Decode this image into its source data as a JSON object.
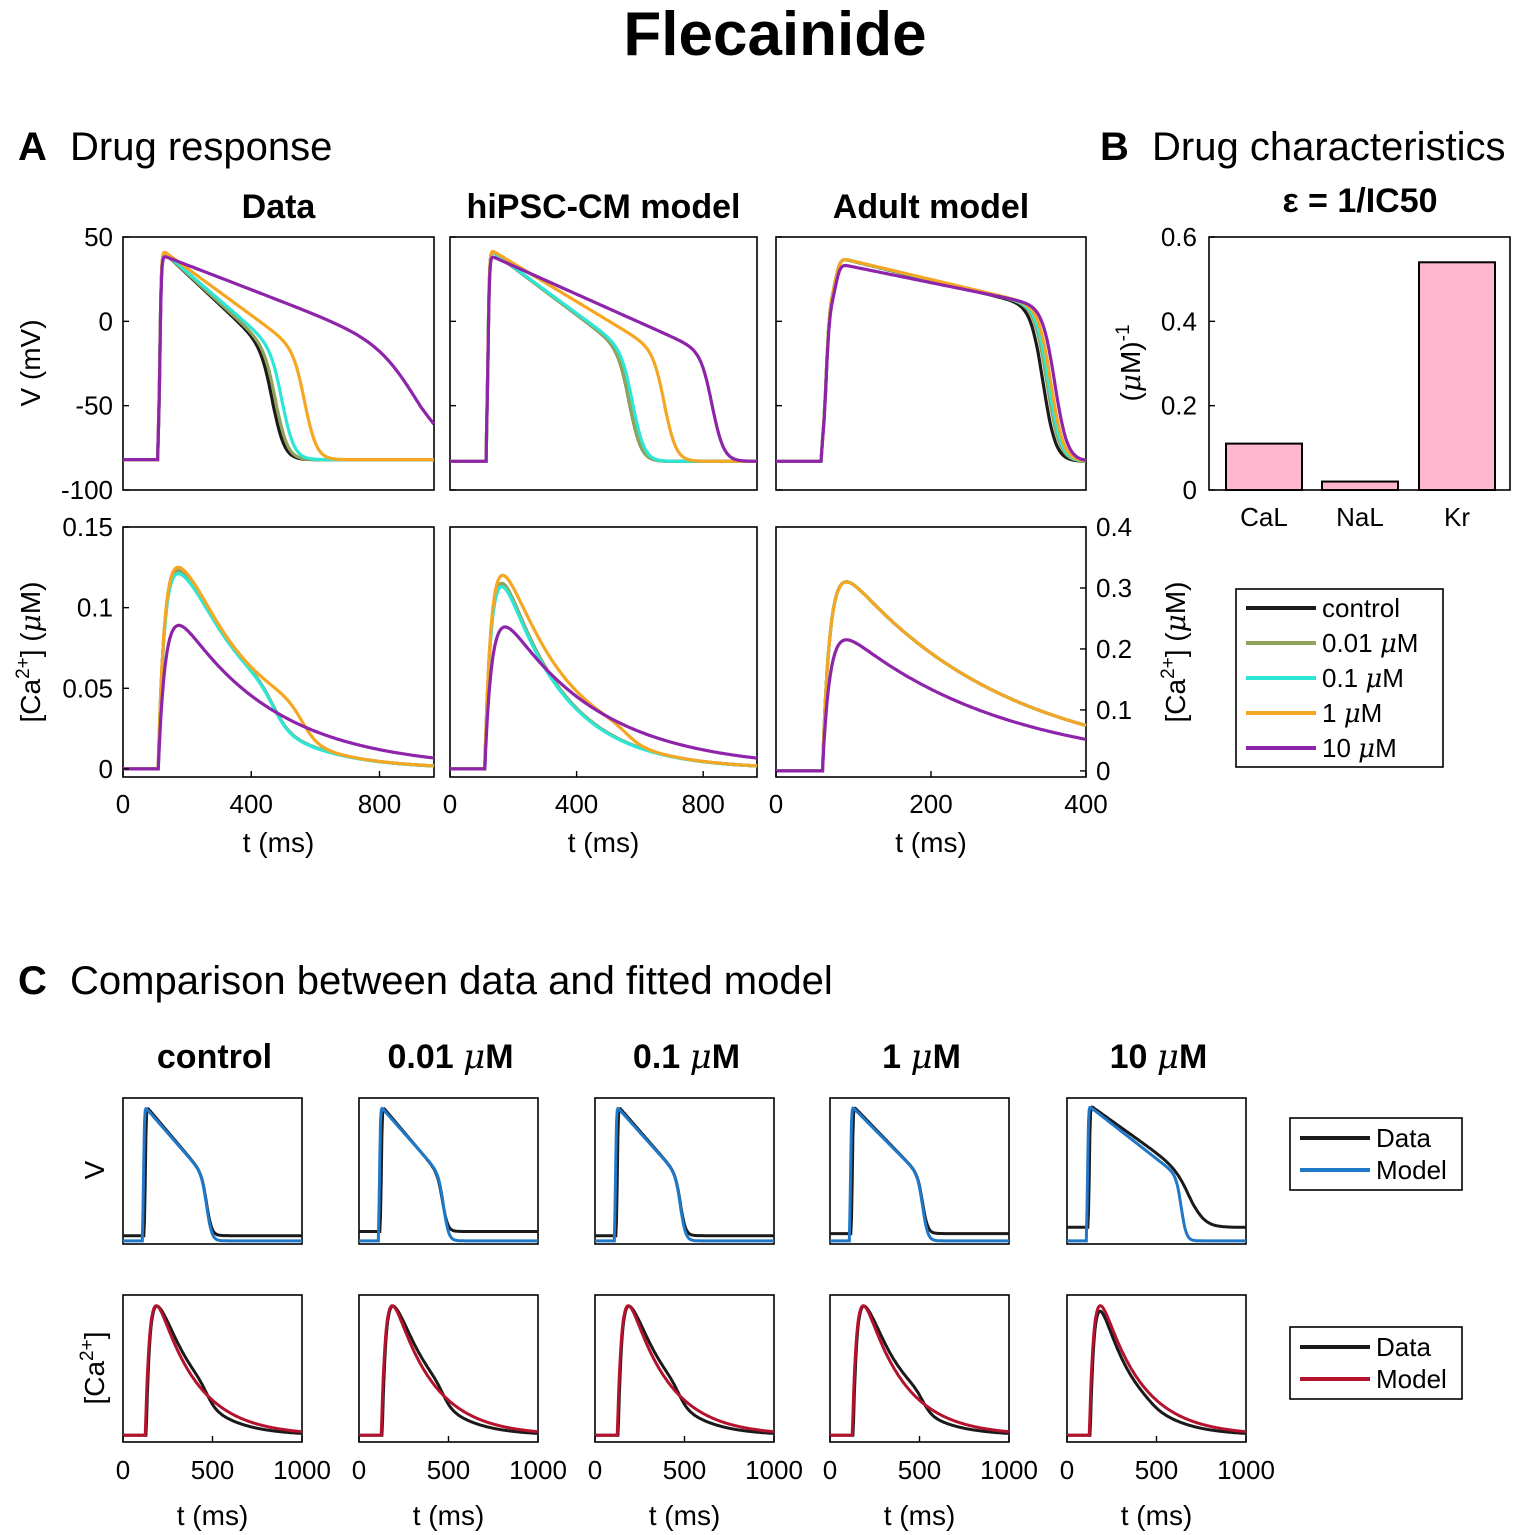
{
  "title": "Flecainide",
  "panels": {
    "A": {
      "letter": "A",
      "heading": "Drug response"
    },
    "B": {
      "letter": "B",
      "heading": "Drug characteristics",
      "formula": "ε = 1/IC50"
    },
    "C": {
      "letter": "C",
      "heading": "Comparison between data and fitted model"
    }
  },
  "colors": {
    "control": "#1a1a1a",
    "c001": "#8fa35a",
    "c01": "#2ee6d6",
    "c1": "#f5a623",
    "c10": "#8e24aa",
    "data": "#1a1a1a",
    "model_v": "#1f78c8",
    "model_ca": "#b5122e",
    "bar_fill": "#ffb6cf"
  },
  "chart_data": [
    {
      "id": "A-voltage",
      "type": "line",
      "columns": [
        "Data",
        "hiPSC-CM model",
        "Adult model"
      ],
      "ylabel": "V (mV)",
      "ylim": [
        -100,
        50
      ],
      "yticks": [
        "50",
        "0",
        "-50",
        "-100"
      ],
      "xlim": [
        [
          0,
          970
        ],
        [
          0,
          970
        ],
        [
          0,
          400
        ]
      ],
      "series": [
        "control",
        "0.01 μM",
        "0.1 μM",
        "1 μM",
        "10 μM"
      ],
      "apd_shape_note": "curve end of plateau (ms): Data 470/480/500/570/930; hiPSC 570/570/580/680/830; Adult 345/350/352/355/360",
      "peak_mV": {
        "Data": 45,
        "hiPSC-CM model": 45,
        "Adult model": 41
      },
      "rest_mV": {
        "Data": -82,
        "hiPSC-CM model": -83,
        "Adult model": -83
      }
    },
    {
      "id": "A-calcium",
      "type": "line",
      "ylabel": "[Ca2+] (μM)",
      "ylabel_parts": {
        "pre": "[Ca",
        "sup": "2+",
        "post": "] (",
        "mu": "μ",
        "end": "M)"
      },
      "ylim_left": [
        -0.005,
        0.15
      ],
      "yticks_left": [
        "0.15",
        "0.1",
        "0.05",
        "0"
      ],
      "ylim_right": [
        -0.01,
        0.4
      ],
      "yticks_right": [
        "0.4",
        "0.3",
        "0.2",
        "0.1",
        "0"
      ],
      "xticks": [
        [
          "0",
          "400",
          "800"
        ],
        [
          "0",
          "400",
          "800"
        ],
        [
          "0",
          "200",
          "400"
        ]
      ],
      "xlabel": "t (ms)",
      "peaks": {
        "Data": [
          0.115,
          0.115,
          0.113,
          0.117,
          0.089
        ],
        "hiPSC-CM model": [
          0.115,
          0.115,
          0.113,
          0.117,
          0.088
        ],
        "Adult model": [
          0.31,
          0.31,
          0.31,
          0.31,
          0.215
        ]
      }
    },
    {
      "id": "B-bars",
      "type": "bar",
      "categories": [
        "CaL",
        "NaL",
        "Kr"
      ],
      "values": [
        0.11,
        0.02,
        0.54
      ],
      "ylabel": "(μM)-1",
      "ylabel_parts": {
        "pre": "(",
        "mu": "μ",
        "post": "M)",
        "sup": "-1"
      },
      "ylim": [
        0,
        0.6
      ],
      "yticks": [
        "0.6",
        "0.4",
        "0.2",
        "0"
      ]
    },
    {
      "id": "C-comparison",
      "type": "line",
      "columns": [
        {
          "pre": "control",
          "mu": "",
          "post": ""
        },
        {
          "pre": "0.01 ",
          "mu": "μ",
          "post": "M"
        },
        {
          "pre": "0.1 ",
          "mu": "μ",
          "post": "M"
        },
        {
          "pre": "1 ",
          "mu": "μ",
          "post": "M"
        },
        {
          "pre": "10 ",
          "mu": "μ",
          "post": "M"
        }
      ],
      "row_labels": {
        "v": "V",
        "ca_pre": "[Ca",
        "ca_sup": "2+",
        "ca_post": "]"
      },
      "xlim": [
        0,
        1000
      ],
      "xticks": [
        "0",
        "500",
        "1000"
      ],
      "xlabel": "t (ms)",
      "series": [
        "Data",
        "Model"
      ]
    }
  ],
  "legend_A": {
    "items": [
      {
        "key": "control",
        "pre": "control",
        "mu": "",
        "post": ""
      },
      {
        "key": "c001",
        "pre": "0.01 ",
        "mu": "μ",
        "post": "M"
      },
      {
        "key": "c01",
        "pre": "0.1 ",
        "mu": "μ",
        "post": "M"
      },
      {
        "key": "c1",
        "pre": "1 ",
        "mu": "μ",
        "post": "M"
      },
      {
        "key": "c10",
        "pre": "10 ",
        "mu": "μ",
        "post": "M"
      }
    ]
  },
  "legend_C_v": {
    "items": [
      "Data",
      "Model"
    ]
  },
  "legend_C_ca": {
    "items": [
      "Data",
      "Model"
    ]
  }
}
